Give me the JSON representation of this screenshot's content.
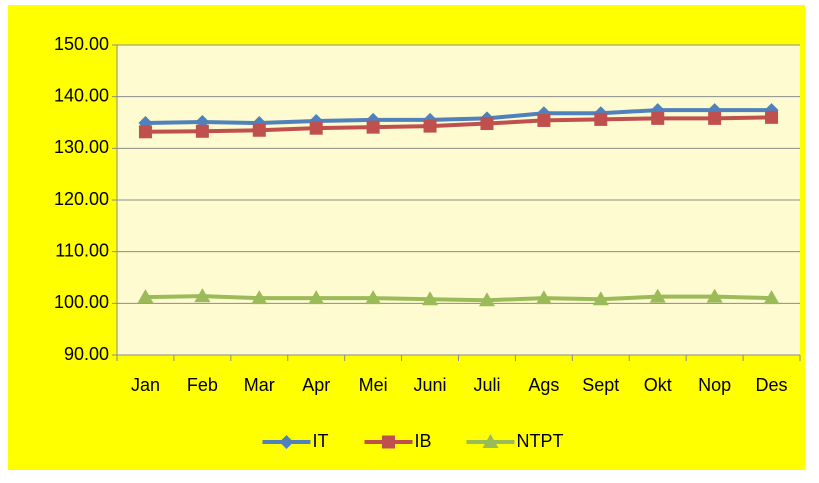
{
  "chart_data": {
    "type": "line",
    "categories": [
      "Jan",
      "Feb",
      "Mar",
      "Apr",
      "Mei",
      "Juni",
      "Juli",
      "Ags",
      "Sept",
      "Okt",
      "Nop",
      "Des"
    ],
    "series": [
      {
        "name": "IT",
        "color": "#4f81bd",
        "marker": "diamond",
        "values": [
          134.9,
          135.1,
          134.9,
          135.3,
          135.5,
          135.5,
          135.8,
          136.8,
          136.8,
          137.4,
          137.4,
          137.4
        ]
      },
      {
        "name": "IB",
        "color": "#c0504d",
        "marker": "square",
        "values": [
          133.2,
          133.3,
          133.5,
          133.9,
          134.1,
          134.3,
          134.8,
          135.4,
          135.6,
          135.8,
          135.8,
          136.0
        ]
      },
      {
        "name": "NTPT",
        "color": "#9bbb59",
        "marker": "triangle",
        "values": [
          101.2,
          101.4,
          101.0,
          101.0,
          101.0,
          100.8,
          100.6,
          101.0,
          100.8,
          101.3,
          101.3,
          101.0
        ]
      }
    ],
    "ylim": [
      90,
      150
    ],
    "yticks": [
      {
        "value": 90,
        "label": "90.00"
      },
      {
        "value": 100,
        "label": "100.00"
      },
      {
        "value": 110,
        "label": "110.00"
      },
      {
        "value": 120,
        "label": "120.00"
      },
      {
        "value": 130,
        "label": "130.00"
      },
      {
        "value": 140,
        "label": "140.00"
      },
      {
        "value": 150,
        "label": "150.00"
      }
    ],
    "grid": true,
    "legend": "bottom"
  }
}
